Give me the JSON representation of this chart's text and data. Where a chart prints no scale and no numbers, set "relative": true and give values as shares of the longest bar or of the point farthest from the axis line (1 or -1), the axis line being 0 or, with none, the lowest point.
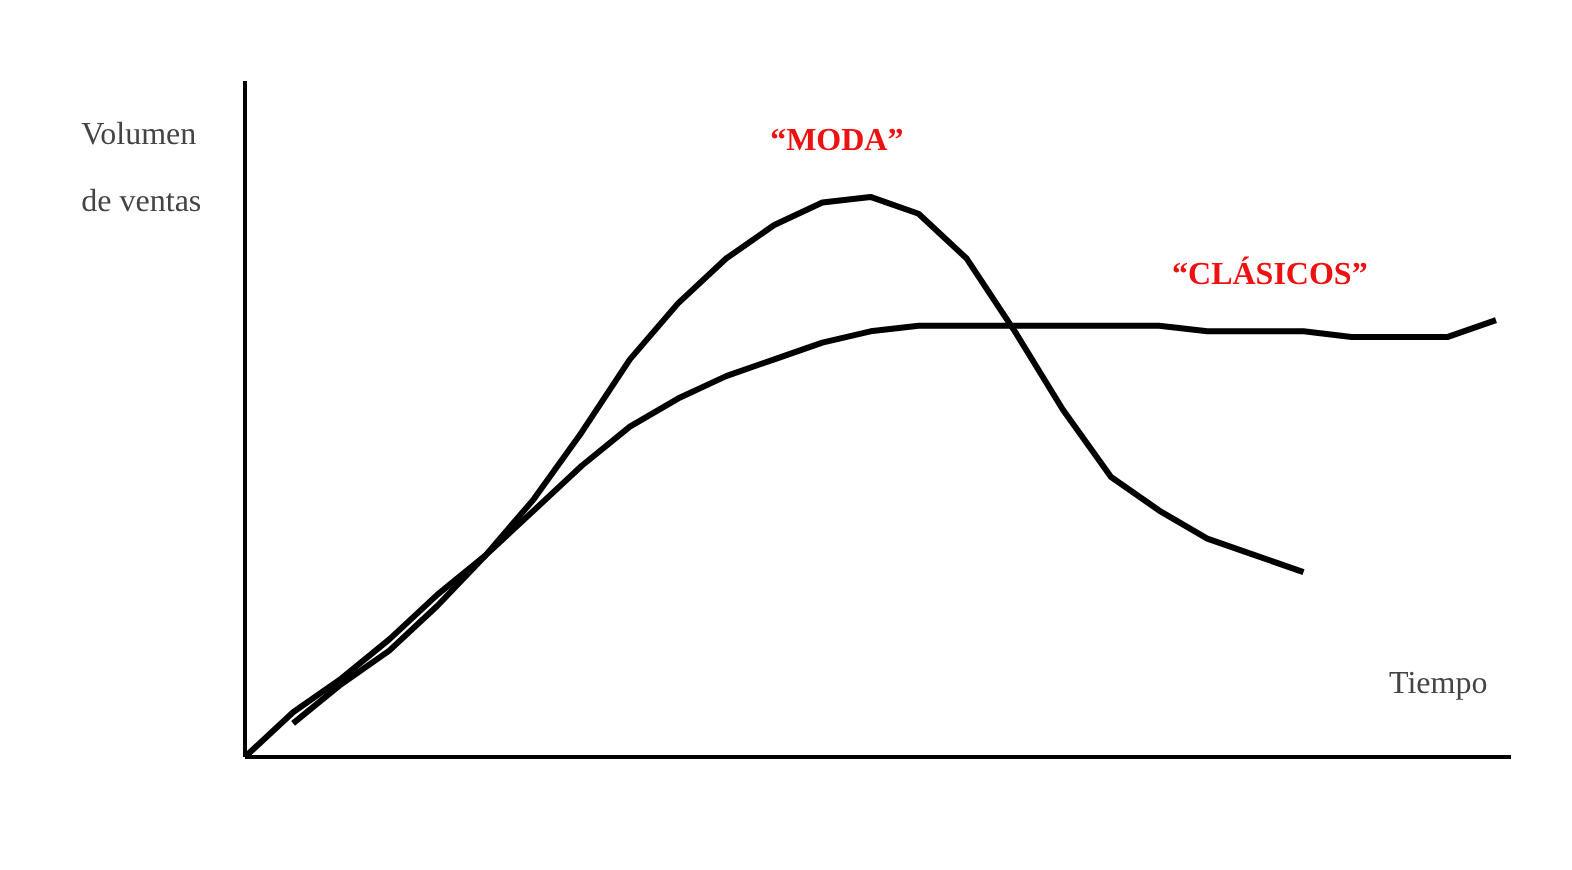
{
  "chart_data": {
    "type": "line",
    "relative": true,
    "xlabel": "Tiempo",
    "ylabel": "Volumen de ventas",
    "grid": false,
    "marker": "none",
    "line_style": "solid",
    "categories": [
      null,
      null,
      null,
      null,
      null,
      null,
      null,
      null,
      null,
      null,
      null,
      null,
      null,
      null,
      null,
      null,
      null,
      null,
      null,
      null,
      null,
      null,
      null,
      null,
      null,
      null,
      null
    ],
    "series": [
      {
        "name": "“MODA”",
        "color": "#000000",
        "values": [
          null,
          0.06,
          0.13,
          0.19,
          0.27,
          0.36,
          0.46,
          0.58,
          0.71,
          0.81,
          0.89,
          0.95,
          0.99,
          1,
          0.97,
          0.89,
          0.76,
          0.62,
          0.5,
          0.44,
          0.39,
          0.36,
          0.33,
          null,
          null,
          null,
          null
        ]
      },
      {
        "name": "“CLÁSICOS”",
        "color": "#000000",
        "values": [
          0,
          0.08,
          0.14,
          0.21,
          0.29,
          0.36,
          0.44,
          0.52,
          0.59,
          0.64,
          0.68,
          0.71,
          0.74,
          0.76,
          0.77,
          0.77,
          0.77,
          0.77,
          0.77,
          0.77,
          0.76,
          0.76,
          0.76,
          0.75,
          0.75,
          0.75,
          0.78
        ]
      }
    ]
  }
}
